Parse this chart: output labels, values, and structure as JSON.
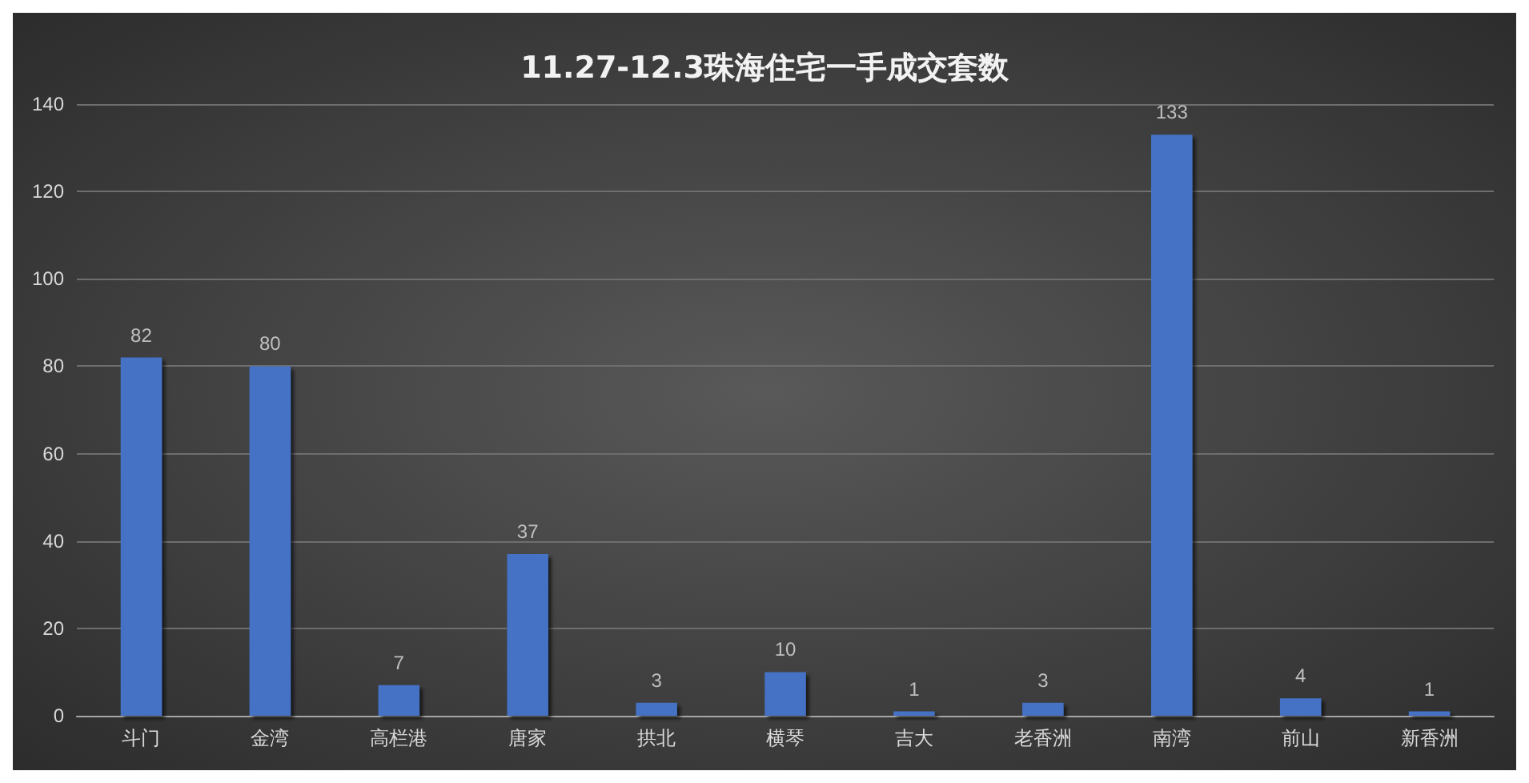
{
  "chart_data": {
    "type": "bar",
    "title": "11.27-12.3珠海住宅一手成交套数",
    "categories": [
      "斗门",
      "金湾",
      "高栏港",
      "唐家",
      "拱北",
      "横琴",
      "吉大",
      "老香洲",
      "南湾",
      "前山",
      "新香洲"
    ],
    "values": [
      82,
      80,
      7,
      37,
      3,
      10,
      1,
      3,
      133,
      4,
      1
    ],
    "color": "#4472c4",
    "ylim": [
      0,
      140
    ],
    "yticks": [
      0,
      20,
      40,
      60,
      80,
      100,
      120,
      140
    ],
    "grid": "y",
    "data_labels": true
  }
}
